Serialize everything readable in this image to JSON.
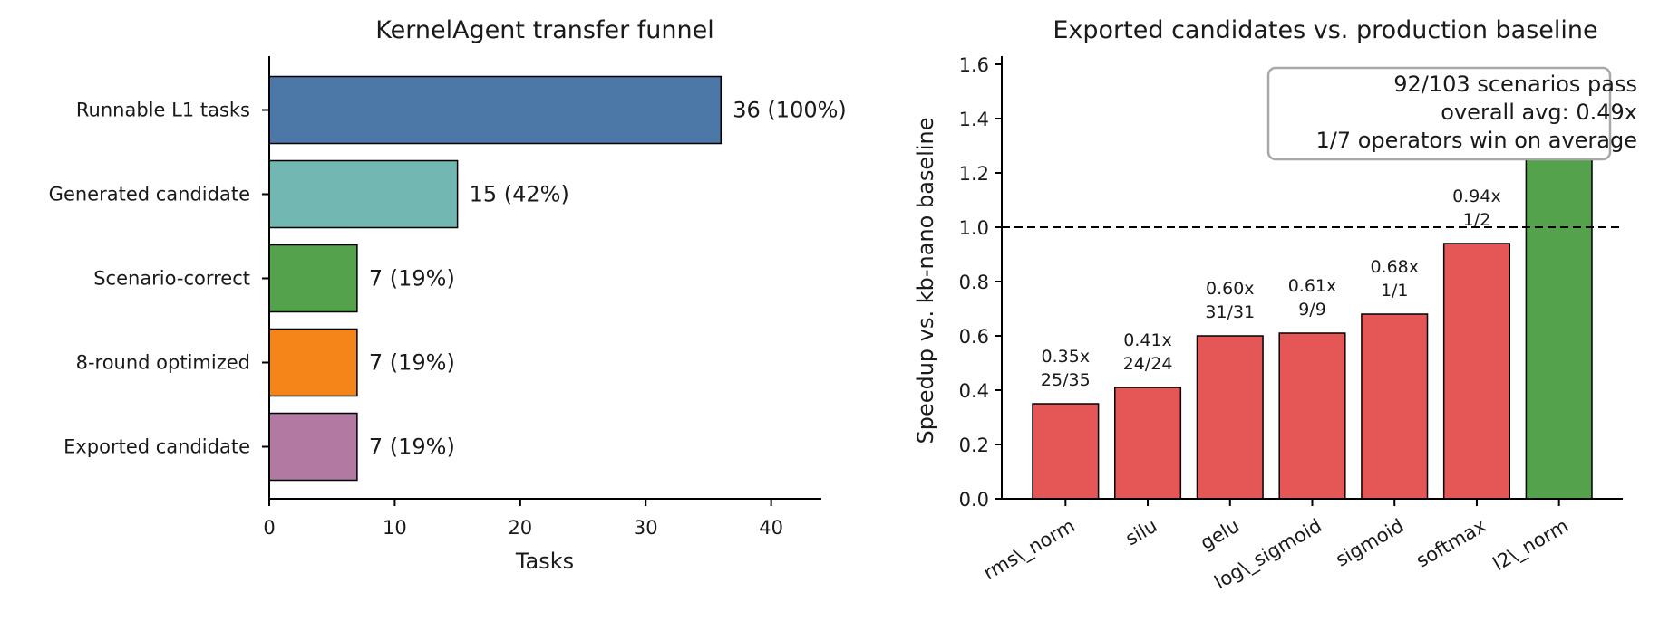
{
  "chart_data": [
    {
      "type": "bar",
      "orientation": "horizontal",
      "title": "KernelAgent transfer funnel",
      "xlabel": "Tasks",
      "ylabel": "",
      "xlim": [
        0,
        44
      ],
      "xticks": [
        0,
        10,
        20,
        30,
        40
      ],
      "grid": false,
      "categories": [
        "Runnable L1 tasks",
        "Generated candidate",
        "Scenario-correct",
        "8-round optimized",
        "Exported candidate"
      ],
      "values": [
        36,
        15,
        7,
        7,
        7
      ],
      "data_labels": [
        "36 (100%)",
        "15 (42%)",
        "7 (19%)",
        "7 (19%)",
        "7 (19%)"
      ],
      "colors": [
        "#4c78a8",
        "#72b7b2",
        "#54a24b",
        "#f58518",
        "#b279a2"
      ]
    },
    {
      "type": "bar",
      "title": "Exported candidates vs. production baseline",
      "xlabel": "",
      "ylabel": "Speedup vs. kb-nano baseline",
      "ylim": [
        0,
        1.63
      ],
      "yticks": [
        0.0,
        0.2,
        0.4,
        0.6,
        0.8,
        1.0,
        1.2,
        1.4,
        1.6
      ],
      "grid": false,
      "categories": [
        "rms\\_norm",
        "silu",
        "gelu",
        "log\\_sigmoid",
        "sigmoid",
        "softmax",
        "l2\\_norm"
      ],
      "values": [
        0.35,
        0.41,
        0.6,
        0.61,
        0.68,
        0.94,
        1.3
      ],
      "bar_labels": [
        [
          "0.35x",
          "25/35"
        ],
        [
          "0.41x",
          "24/24"
        ],
        [
          "0.60x",
          "31/31"
        ],
        [
          "0.61x",
          "9/9"
        ],
        [
          "0.68x",
          "1/1"
        ],
        [
          "0.94x",
          "1/2"
        ],
        null
      ],
      "colors": [
        "#e45756",
        "#e45756",
        "#e45756",
        "#e45756",
        "#e45756",
        "#e45756",
        "#54a24b"
      ],
      "reference_line": {
        "y": 1.0,
        "style": "dashed"
      },
      "annotation": {
        "lines": [
          "92/103 scenarios pass",
          "overall avg: 0.49x",
          "1/7 operators win on average"
        ],
        "placement": "top-right"
      }
    }
  ]
}
